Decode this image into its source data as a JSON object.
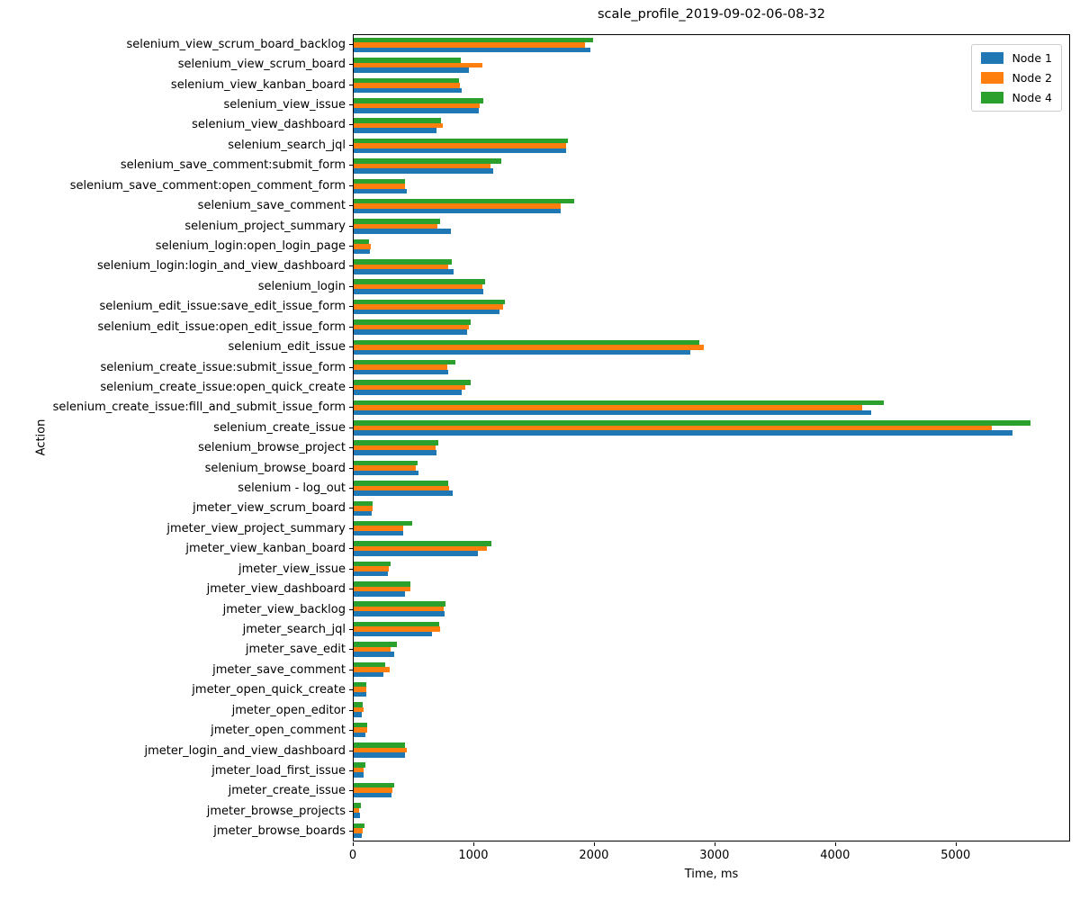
{
  "chart_data": {
    "type": "bar",
    "orientation": "horizontal",
    "title": "scale_profile_2019-09-02-06-08-32",
    "xlabel": "Time, ms",
    "ylabel": "Action",
    "x_ticks": [
      0,
      1000,
      2000,
      3000,
      4000,
      5000
    ],
    "xlim": [
      0,
      5950
    ],
    "grid": false,
    "legend_position": "upper right",
    "categories": [
      "selenium_view_scrum_board_backlog",
      "selenium_view_scrum_board",
      "selenium_view_kanban_board",
      "selenium_view_issue",
      "selenium_view_dashboard",
      "selenium_search_jql",
      "selenium_save_comment:submit_form",
      "selenium_save_comment:open_comment_form",
      "selenium_save_comment",
      "selenium_project_summary",
      "selenium_login:open_login_page",
      "selenium_login:login_and_view_dashboard",
      "selenium_login",
      "selenium_edit_issue:save_edit_issue_form",
      "selenium_edit_issue:open_edit_issue_form",
      "selenium_edit_issue",
      "selenium_create_issue:submit_issue_form",
      "selenium_create_issue:open_quick_create",
      "selenium_create_issue:fill_and_submit_issue_form",
      "selenium_create_issue",
      "selenium_browse_project",
      "selenium_browse_board",
      "selenium - log_out",
      "jmeter_view_scrum_board",
      "jmeter_view_project_summary",
      "jmeter_view_kanban_board",
      "jmeter_view_issue",
      "jmeter_view_dashboard",
      "jmeter_view_backlog",
      "jmeter_search_jql",
      "jmeter_save_edit",
      "jmeter_save_comment",
      "jmeter_open_quick_create",
      "jmeter_open_editor",
      "jmeter_open_comment",
      "jmeter_login_and_view_dashboard",
      "jmeter_load_first_issue",
      "jmeter_create_issue",
      "jmeter_browse_projects",
      "jmeter_browse_boards"
    ],
    "series": [
      {
        "name": "Node 1",
        "color": "#1f77b4",
        "values": [
          1970,
          960,
          900,
          1040,
          685,
          1765,
          1160,
          440,
          1725,
          805,
          135,
          830,
          1080,
          1215,
          940,
          2800,
          785,
          900,
          4300,
          5480,
          685,
          540,
          825,
          150,
          410,
          1030,
          285,
          430,
          755,
          650,
          340,
          245,
          105,
          65,
          95,
          425,
          85,
          315,
          55,
          70
        ]
      },
      {
        "name": "Node 2",
        "color": "#ff7f0e",
        "values": [
          1920,
          1070,
          880,
          1045,
          740,
          1770,
          1140,
          430,
          1725,
          695,
          140,
          785,
          1070,
          1245,
          955,
          2915,
          775,
          925,
          4230,
          5305,
          680,
          515,
          790,
          160,
          415,
          1110,
          295,
          475,
          750,
          715,
          310,
          300,
          105,
          80,
          115,
          440,
          80,
          325,
          45,
          72
        ]
      },
      {
        "name": "Node 4",
        "color": "#2ca02c",
        "values": [
          1990,
          890,
          875,
          1080,
          725,
          1780,
          1230,
          425,
          1835,
          715,
          130,
          815,
          1090,
          1255,
          975,
          2875,
          845,
          970,
          4410,
          5630,
          700,
          530,
          785,
          155,
          485,
          1145,
          310,
          470,
          760,
          710,
          360,
          260,
          105,
          75,
          110,
          430,
          95,
          335,
          60,
          90
        ]
      }
    ],
    "legend_entries": [
      "Node 1",
      "Node 2",
      "Node 4"
    ]
  }
}
